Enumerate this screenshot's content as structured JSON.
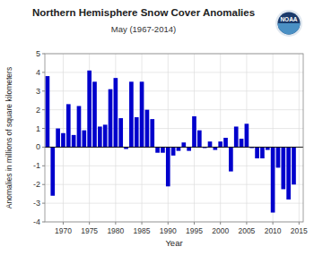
{
  "chart_data": {
    "type": "bar",
    "title": "Northern Hemisphere Snow Cover Anomalies",
    "subtitle": "May (1967-2014)",
    "xlabel": "Year",
    "ylabel": "Anomalies in millions of square kilometers",
    "annotations": [
      "NOAA"
    ],
    "x": [
      1967,
      1968,
      1969,
      1970,
      1971,
      1972,
      1973,
      1974,
      1975,
      1976,
      1977,
      1978,
      1979,
      1980,
      1981,
      1982,
      1983,
      1984,
      1985,
      1986,
      1987,
      1988,
      1989,
      1990,
      1991,
      1992,
      1993,
      1994,
      1995,
      1996,
      1997,
      1998,
      1999,
      2000,
      2001,
      2002,
      2003,
      2004,
      2005,
      2006,
      2007,
      2008,
      2009,
      2010,
      2011,
      2012,
      2013,
      2014
    ],
    "values": [
      3.8,
      -2.6,
      1.0,
      0.75,
      2.3,
      0.65,
      2.2,
      0.9,
      4.1,
      3.5,
      1.1,
      1.2,
      3.1,
      3.7,
      1.55,
      -0.1,
      3.5,
      1.6,
      3.5,
      2.0,
      1.5,
      -0.3,
      -0.3,
      -2.1,
      -0.45,
      -0.2,
      0.25,
      -0.2,
      1.65,
      0.9,
      -0.05,
      0.3,
      -0.15,
      0.3,
      0.5,
      -1.3,
      1.1,
      0.45,
      1.25,
      -0.05,
      -0.6,
      -0.6,
      -0.15,
      -3.5,
      -1.1,
      -2.25,
      -2.8,
      -2.0
    ],
    "color": "#0000CC",
    "xlim": [
      1966.5,
      2015.8
    ],
    "xticks": [
      1970,
      1975,
      1980,
      1985,
      1990,
      1995,
      2000,
      2005,
      2010,
      2015
    ],
    "ylim": [
      -4.0,
      5.0
    ],
    "yticks": [
      -4.0,
      -3.0,
      -2.0,
      -1.0,
      0.0,
      1.0,
      2.0,
      3.0,
      4.0,
      5.0
    ],
    "grid": true
  }
}
